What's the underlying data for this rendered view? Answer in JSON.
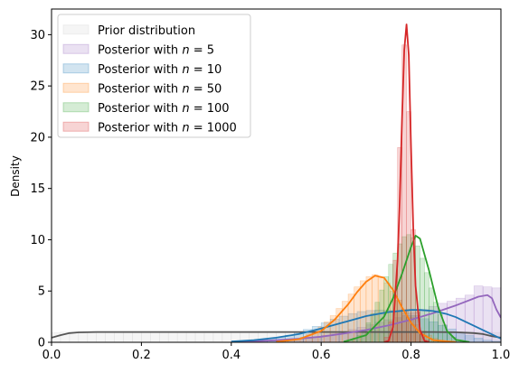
{
  "chart_data": {
    "type": "area",
    "title": "",
    "xlabel": "",
    "ylabel": "Density",
    "xlim": [
      0.0,
      1.0
    ],
    "ylim": [
      0,
      32.5
    ],
    "xticks": [
      "0.0",
      "0.2",
      "0.4",
      "0.6",
      "0.8",
      "1.0"
    ],
    "yticks": [
      "0",
      "5",
      "10",
      "15",
      "20",
      "25",
      "30"
    ],
    "legend_position": "upper left",
    "grid": false,
    "series": [
      {
        "name": "Prior distribution",
        "fill_color": "#cccccc",
        "line_color": "#555555",
        "hist_bins": [
          0.0,
          1.0,
          50
        ],
        "hist_heights": [
          0.95,
          1.0,
          0.98,
          1.02,
          0.97,
          1.0,
          1.03,
          0.96,
          1.0,
          0.99,
          1.01,
          0.97,
          1.02,
          0.98,
          1.0,
          1.01,
          0.96,
          1.03,
          0.99,
          1.0,
          0.98,
          1.02,
          1.0,
          0.97,
          1.01,
          0.99,
          1.0,
          1.03,
          0.98,
          1.0,
          0.97,
          1.02,
          1.0,
          0.99,
          1.01,
          0.98,
          1.0,
          1.02,
          0.97,
          1.0,
          1.01,
          0.99,
          0.98,
          1.02,
          1.0,
          0.97,
          1.01,
          0.99,
          1.0,
          0.96
        ],
        "density_x": [
          0.0,
          0.02,
          0.04,
          0.06,
          0.1,
          0.15,
          0.2,
          0.3,
          0.4,
          0.5,
          0.6,
          0.7,
          0.8,
          0.85,
          0.9,
          0.94,
          0.96,
          0.98,
          1.0
        ],
        "density_y": [
          0.45,
          0.7,
          0.9,
          0.97,
          1.0,
          1.0,
          1.0,
          1.0,
          1.0,
          1.0,
          1.0,
          1.0,
          1.0,
          1.0,
          0.98,
          0.9,
          0.8,
          0.6,
          0.45
        ]
      },
      {
        "name": "Posterior with $n = 5$",
        "fill_color": "#9467bd",
        "line_color": "#9467bd",
        "hist_bins": [
          0.4,
          1.0,
          30
        ],
        "hist_heights": [
          0.02,
          0.03,
          0.05,
          0.08,
          0.1,
          0.15,
          0.2,
          0.3,
          0.4,
          0.55,
          0.7,
          0.85,
          1.05,
          1.25,
          1.45,
          1.7,
          1.95,
          2.2,
          2.4,
          2.6,
          2.9,
          3.2,
          3.5,
          3.8,
          4.0,
          4.3,
          4.6,
          5.5,
          5.4,
          5.3
        ],
        "density_x": [
          0.4,
          0.45,
          0.5,
          0.55,
          0.6,
          0.65,
          0.7,
          0.75,
          0.8,
          0.85,
          0.9,
          0.93,
          0.95,
          0.97,
          0.98,
          0.99,
          1.0
        ],
        "density_y": [
          0.05,
          0.1,
          0.2,
          0.35,
          0.55,
          0.85,
          1.2,
          1.65,
          2.2,
          2.85,
          3.6,
          4.1,
          4.45,
          4.6,
          4.3,
          3.2,
          2.4
        ]
      },
      {
        "name": "Posterior with $n = 10$",
        "fill_color": "#1f77b4",
        "line_color": "#1f77b4",
        "hist_bins": [
          0.4,
          1.0,
          30
        ],
        "hist_heights": [
          0.05,
          0.1,
          0.15,
          0.25,
          0.35,
          0.5,
          0.7,
          0.95,
          1.25,
          1.55,
          1.9,
          2.25,
          2.55,
          2.8,
          3.0,
          3.1,
          3.15,
          3.1,
          3.0,
          2.85,
          2.6,
          2.3,
          2.0,
          1.65,
          1.3,
          0.95,
          0.65,
          0.4,
          0.2,
          0.1
        ],
        "density_x": [
          0.4,
          0.45,
          0.5,
          0.55,
          0.6,
          0.65,
          0.7,
          0.75,
          0.8,
          0.82,
          0.85,
          0.88,
          0.9,
          0.95,
          1.0
        ],
        "density_y": [
          0.08,
          0.2,
          0.45,
          0.8,
          1.35,
          1.95,
          2.55,
          2.95,
          3.15,
          3.15,
          3.05,
          2.75,
          2.45,
          1.4,
          0.35
        ]
      },
      {
        "name": "Posterior with $n = 50$",
        "fill_color": "#ff7f0e",
        "line_color": "#ff7f0e",
        "hist_bins": [
          0.5,
          0.9,
          30
        ],
        "hist_heights": [
          0.05,
          0.1,
          0.2,
          0.3,
          0.5,
          0.8,
          1.1,
          1.5,
          2.0,
          2.6,
          3.3,
          4.0,
          4.7,
          5.4,
          6.0,
          6.4,
          6.6,
          6.3,
          5.8,
          5.0,
          4.1,
          3.2,
          2.4,
          1.7,
          1.1,
          0.7,
          0.4,
          0.2,
          0.1,
          0.05
        ],
        "density_x": [
          0.5,
          0.55,
          0.6,
          0.63,
          0.66,
          0.68,
          0.7,
          0.72,
          0.74,
          0.76,
          0.78,
          0.8,
          0.82,
          0.85,
          0.9
        ],
        "density_y": [
          0.05,
          0.3,
          1.1,
          2.2,
          3.7,
          4.9,
          5.9,
          6.5,
          6.3,
          5.1,
          3.4,
          1.9,
          0.9,
          0.2,
          0.02
        ]
      },
      {
        "name": "Posterior with $n = 100$",
        "fill_color": "#2ca02c",
        "line_color": "#2ca02c",
        "hist_bins": [
          0.65,
          0.93,
          28
        ],
        "hist_heights": [
          0.1,
          0.2,
          0.4,
          0.7,
          1.2,
          1.9,
          2.8,
          3.9,
          5.1,
          6.4,
          7.6,
          8.7,
          9.6,
          10.3,
          10.5,
          10.2,
          9.4,
          8.2,
          6.8,
          5.3,
          3.9,
          2.7,
          1.7,
          1.0,
          0.5,
          0.25,
          0.1,
          0.05
        ],
        "density_x": [
          0.65,
          0.7,
          0.74,
          0.76,
          0.78,
          0.8,
          0.81,
          0.82,
          0.84,
          0.86,
          0.88,
          0.9,
          0.93
        ],
        "density_y": [
          0.05,
          0.7,
          2.5,
          4.3,
          6.7,
          9.3,
          10.4,
          10.1,
          7.0,
          3.5,
          1.1,
          0.25,
          0.02
        ]
      },
      {
        "name": "Posterior with $n = 1000$",
        "fill_color": "#d62728",
        "line_color": "#d62728",
        "hist_bins": [
          0.74,
          0.84,
          10
        ],
        "hist_heights": [
          0.5,
          2.0,
          8.0,
          19.0,
          29.0,
          22.5,
          11.0,
          3.0,
          0.8,
          0.2
        ],
        "density_x": [
          0.74,
          0.75,
          0.76,
          0.77,
          0.775,
          0.78,
          0.785,
          0.79,
          0.795,
          0.8,
          0.805,
          0.81,
          0.82,
          0.83,
          0.84
        ],
        "density_y": [
          0.02,
          0.15,
          1.5,
          8.0,
          14.0,
          22.0,
          28.5,
          31.0,
          28.0,
          19.0,
          11.0,
          5.5,
          1.2,
          0.15,
          0.01
        ]
      }
    ]
  }
}
